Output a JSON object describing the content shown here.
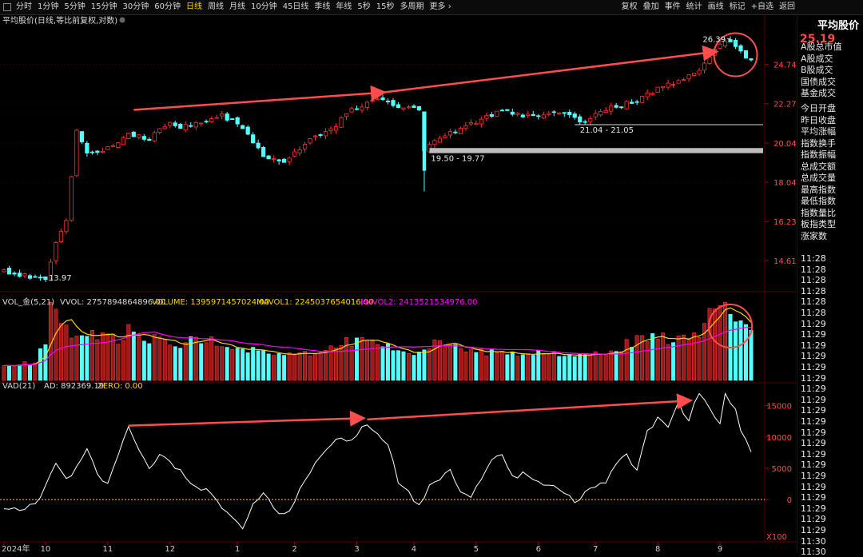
{
  "toolbar": {
    "left": [
      "分时",
      "1分钟",
      "5分钟",
      "15分钟",
      "30分钟",
      "60分钟",
      "日线",
      "周线",
      "月线",
      "10分钟",
      "45日线",
      "季线",
      "年线",
      "5秒",
      "15秒",
      "多周期",
      "更多 ›"
    ],
    "active": "日线",
    "right": [
      "复权",
      "叠加",
      "事件",
      "统计",
      "画线",
      "标记",
      "+自选",
      "返回"
    ]
  },
  "panel": {
    "title": "平均股价",
    "price": "25.19",
    "labels": [
      "A股总市值",
      "A股成交",
      "B股成交",
      "国债成交",
      "基金成交",
      "今日开盘",
      "昨日收盘",
      "平均涨幅",
      "指数换手",
      "指数振幅",
      "总成交额",
      "总成交量",
      "最高指数",
      "最低指数",
      "指数量比",
      "板指类型",
      "涨家数"
    ],
    "times": [
      "11:28",
      "11:28",
      "11:28",
      "11:28",
      "11:28",
      "11:28",
      "11:29",
      "11:29",
      "11:29",
      "11:29",
      "11:29",
      "11:29",
      "11:29",
      "11:29",
      "11:29",
      "11:29",
      "11:29",
      "11:29",
      "11:29",
      "11:29",
      "11:29",
      "11:29",
      "11:29",
      "11:29",
      "11:29",
      "11:29",
      "11:30",
      "11:30"
    ]
  },
  "colors": {
    "up": "#ff3232",
    "down": "#54ffff",
    "ma1": "#ffd400",
    "ma2": "#ff00ff",
    "arrow": "#ff4d4d",
    "grid": "#5a0000"
  },
  "chart_data": [
    {
      "type": "candlestick",
      "title": "平均股价(日线,等比前复权,对数)",
      "y_ticks": [
        24.74,
        22.27,
        20.04,
        18.04,
        16.23,
        14.61
      ],
      "ylim": [
        13.5,
        27.0
      ],
      "x_ticks": [
        "2024年",
        "10",
        "11",
        "12",
        "1",
        "2",
        "3",
        "4",
        "5",
        "6",
        "7",
        "8",
        "9"
      ],
      "annotations": [
        {
          "text": "13.97",
          "value": 13.97
        },
        {
          "text": "26.39",
          "value": 26.39
        },
        {
          "text": "19.50 - 19.77",
          "low": 19.5,
          "high": 19.77
        },
        {
          "text": "21.04 - 21.05",
          "low": 21.04,
          "high": 21.05
        }
      ],
      "close_path": [
        [
          0,
          14.2
        ],
        [
          5,
          14.0
        ],
        [
          8,
          13.97
        ],
        [
          10,
          15.3
        ],
        [
          12,
          16.2
        ],
        [
          13,
          18.3
        ],
        [
          14,
          20.7
        ],
        [
          16,
          19.4
        ],
        [
          20,
          19.8
        ],
        [
          24,
          20.5
        ],
        [
          28,
          20.3
        ],
        [
          32,
          21.3
        ],
        [
          34,
          20.9
        ],
        [
          38,
          21.2
        ],
        [
          42,
          21.6
        ],
        [
          46,
          20.9
        ],
        [
          50,
          19.4
        ],
        [
          54,
          19.0
        ],
        [
          58,
          20.0
        ],
        [
          60,
          20.4
        ],
        [
          64,
          21.0
        ],
        [
          66,
          21.8
        ],
        [
          68,
          22.0
        ],
        [
          72,
          22.6
        ],
        [
          74,
          22.3
        ],
        [
          77,
          22.1
        ],
        [
          80,
          21.9
        ],
        [
          81,
          19.7
        ],
        [
          84,
          20.4
        ],
        [
          88,
          20.8
        ],
        [
          92,
          21.4
        ],
        [
          96,
          21.9
        ],
        [
          100,
          21.5
        ],
        [
          104,
          21.6
        ],
        [
          108,
          21.7
        ],
        [
          112,
          21.2
        ],
        [
          114,
          21.7
        ],
        [
          118,
          22.1
        ],
        [
          122,
          22.5
        ],
        [
          126,
          23.2
        ],
        [
          130,
          23.7
        ],
        [
          134,
          24.4
        ],
        [
          136,
          25.3
        ],
        [
          138,
          26.0
        ],
        [
          140,
          26.39
        ],
        [
          142,
          25.8
        ],
        [
          143,
          25.2
        ],
        [
          144,
          25.19
        ]
      ]
    },
    {
      "type": "bar",
      "title": "VOL_金(5,21)",
      "stats": [
        "VVOL: 2757894864896.00",
        "VOLUME: 1395971457024.00",
        "MAVOL1: 2245037654016.00",
        "MAVOL2: 2413521534976.00"
      ],
      "series_names": [
        "MAVOL1",
        "MAVOL2"
      ],
      "relative_volume_path": [
        [
          0,
          0.22
        ],
        [
          6,
          0.22
        ],
        [
          8,
          0.55
        ],
        [
          9,
          1.0
        ],
        [
          11,
          0.72
        ],
        [
          14,
          0.62
        ],
        [
          18,
          0.6
        ],
        [
          22,
          0.55
        ],
        [
          24,
          0.7
        ],
        [
          28,
          0.55
        ],
        [
          34,
          0.5
        ],
        [
          38,
          0.58
        ],
        [
          44,
          0.45
        ],
        [
          50,
          0.38
        ],
        [
          56,
          0.35
        ],
        [
          60,
          0.38
        ],
        [
          66,
          0.55
        ],
        [
          70,
          0.5
        ],
        [
          76,
          0.45
        ],
        [
          80,
          0.38
        ],
        [
          82,
          0.5
        ],
        [
          90,
          0.38
        ],
        [
          100,
          0.36
        ],
        [
          110,
          0.36
        ],
        [
          118,
          0.42
        ],
        [
          124,
          0.6
        ],
        [
          130,
          0.55
        ],
        [
          134,
          0.65
        ],
        [
          136,
          0.9
        ],
        [
          138,
          1.0
        ],
        [
          141,
          0.85
        ],
        [
          144,
          0.65
        ]
      ]
    },
    {
      "type": "line",
      "title": "VAD(21)",
      "stats": [
        "AD: 892369.19",
        "ZERO: 0.00"
      ],
      "series_names": [
        "AD",
        "ZERO"
      ],
      "y_ticks": [
        15000,
        10000,
        5000,
        0
      ],
      "ylim": [
        -6500,
        17500
      ],
      "multiplier_label": "X100",
      "ad_path": [
        [
          0,
          -1800
        ],
        [
          4,
          -1500
        ],
        [
          6,
          -800
        ],
        [
          8,
          2000
        ],
        [
          10,
          6000
        ],
        [
          12,
          3000
        ],
        [
          14,
          5000
        ],
        [
          16,
          8000
        ],
        [
          18,
          4000
        ],
        [
          20,
          2500
        ],
        [
          22,
          7000
        ],
        [
          24,
          11800
        ],
        [
          26,
          8000
        ],
        [
          28,
          4500
        ],
        [
          30,
          7000
        ],
        [
          33,
          5000
        ],
        [
          36,
          3000
        ],
        [
          40,
          800
        ],
        [
          44,
          -3000
        ],
        [
          46,
          -4500
        ],
        [
          48,
          -1000
        ],
        [
          50,
          1500
        ],
        [
          53,
          -2500
        ],
        [
          55,
          -1800
        ],
        [
          58,
          3000
        ],
        [
          62,
          8000
        ],
        [
          64,
          10000
        ],
        [
          66,
          9000
        ],
        [
          68,
          10500
        ],
        [
          70,
          12200
        ],
        [
          72,
          10500
        ],
        [
          74,
          8500
        ],
        [
          76,
          3000
        ],
        [
          78,
          1000
        ],
        [
          80,
          -1000
        ],
        [
          82,
          2000
        ],
        [
          86,
          4500
        ],
        [
          88,
          1000
        ],
        [
          90,
          500
        ],
        [
          94,
          6000
        ],
        [
          96,
          7500
        ],
        [
          98,
          3500
        ],
        [
          100,
          4000
        ],
        [
          104,
          2500
        ],
        [
          108,
          1200
        ],
        [
          110,
          -500
        ],
        [
          112,
          1000
        ],
        [
          116,
          3000
        ],
        [
          118,
          6000
        ],
        [
          120,
          7000
        ],
        [
          122,
          4500
        ],
        [
          124,
          11000
        ],
        [
          126,
          13000
        ],
        [
          128,
          11500
        ],
        [
          130,
          15300
        ],
        [
          132,
          12800
        ],
        [
          134,
          17000
        ],
        [
          136,
          14500
        ],
        [
          138,
          12000
        ],
        [
          139,
          16500
        ],
        [
          141,
          14500
        ],
        [
          142,
          11000
        ],
        [
          144,
          8000
        ]
      ]
    }
  ]
}
